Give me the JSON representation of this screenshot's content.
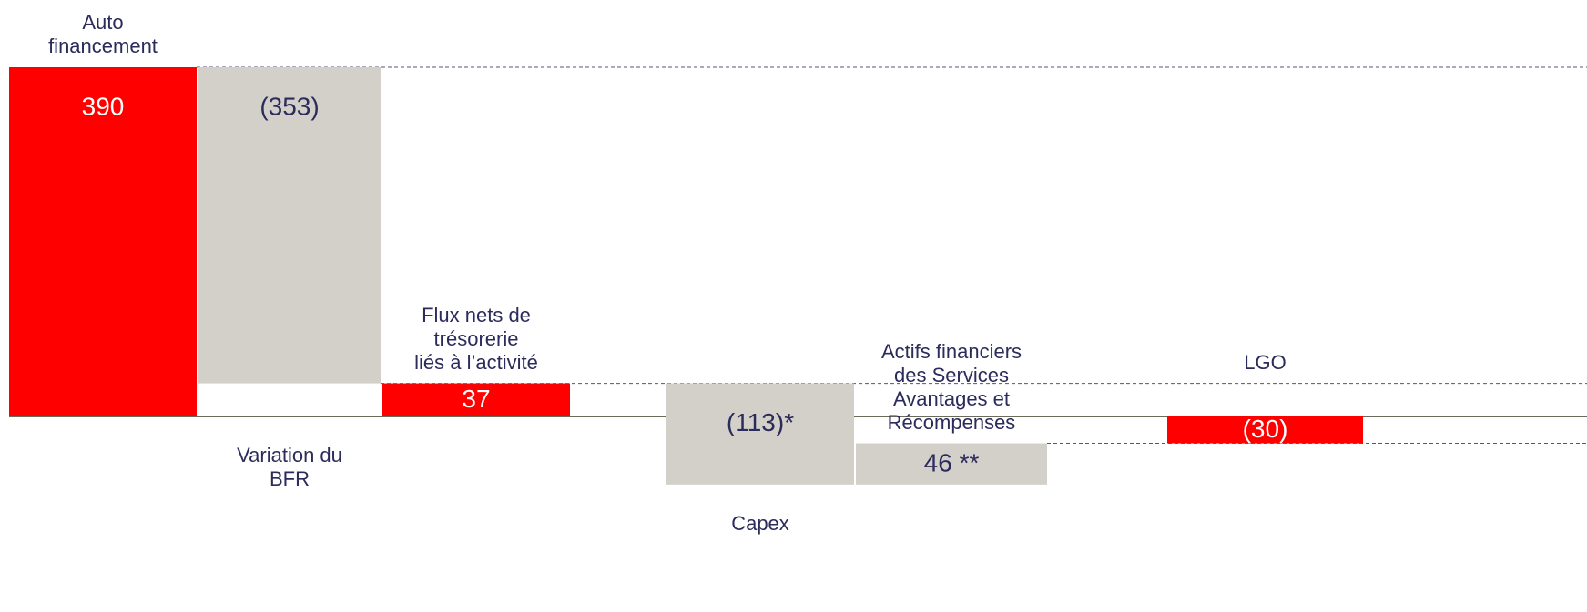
{
  "chart_data": {
    "type": "waterfall",
    "categories": [
      "Auto\nfinancement",
      "Variation du\nBFR",
      "Flux nets de\ntrésorerie\nliés à l’activité",
      "Capex",
      "Actifs financiers\ndes Services\nAvantages et\nRécompenses",
      "LGO"
    ],
    "values": [
      390,
      -353,
      37,
      -113,
      46,
      -30
    ],
    "value_labels": [
      "390",
      "(353)",
      "37",
      "(113)*",
      "46 **",
      "(30)"
    ],
    "measure": [
      "total",
      "relative",
      "total",
      "relative",
      "relative",
      "total"
    ],
    "total_color": "#ff0000",
    "relative_color": "#d3d0c9"
  }
}
